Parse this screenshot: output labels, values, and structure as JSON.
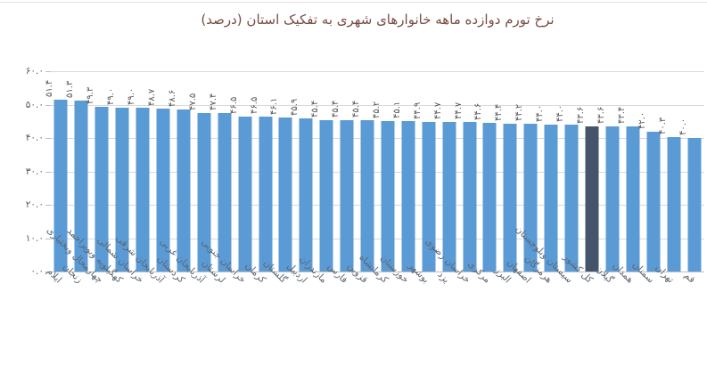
{
  "title": "نرخ تورم دوازده ماهه خانوارهای شهری به تفکیک استان (درصد)",
  "chart_data": {
    "type": "bar",
    "title": "نرخ تورم دوازده ماهه خانوارهای شهری به تفکیک استان (درصد)",
    "ylabel": "",
    "xlabel": "",
    "ylim": [
      0,
      60
    ],
    "grid": true,
    "legend": "none",
    "bar_color": "#5B9BD5",
    "highlight_color": "#44546A",
    "highlighted_category": "کل کشور",
    "highlight_index": 26,
    "y_tick_values": [
      60,
      50,
      40,
      30,
      20,
      10,
      0
    ],
    "y_tick_labels": [
      "۶۰.۰",
      "۵۰.۰",
      "۴۰.۰",
      "۳۰.۰",
      "۲۰.۰",
      "۱۰.۰",
      "۰.۰"
    ],
    "categories": [
      "ایلام",
      "زنجان",
      "چهارمحال وبختیاری",
      "کهگیلویه وبویراحمد",
      "خراسان شمالی",
      "آذربایجان شرقی",
      "کردستان",
      "آذربایجان غربی",
      "لرستان",
      "خراسان جنوبی",
      "کرمان",
      "گلستان",
      "اردبیل",
      "مازندران",
      "فارس",
      "قزوین",
      "کرمانشاه",
      "خوزستان",
      "بوشهر",
      "یزد",
      "خراسان رضوی",
      "مرکزی",
      "البرز",
      "اصفهان",
      "هرمزگان",
      "سیستان وبلوچستان",
      "کل کشور",
      "گیلان",
      "همدان",
      "سمنان",
      "تهران",
      "قم"
    ],
    "values": [
      51.4,
      51.3,
      49.3,
      49.0,
      49.0,
      48.7,
      48.6,
      47.5,
      47.4,
      46.5,
      46.5,
      46.1,
      45.9,
      45.4,
      45.4,
      45.4,
      45.2,
      45.1,
      44.9,
      44.7,
      44.7,
      44.6,
      44.4,
      44.2,
      44.0,
      44.0,
      43.6,
      43.6,
      43.4,
      42.0,
      40.3,
      40.0
    ],
    "value_labels": [
      "۵۱.۴",
      "۵۱.۳",
      "۴۹.۳",
      "۴۹.۰",
      "۴۹.۰",
      "۴۸.۷",
      "۴۸.۶",
      "۴۷.۵",
      "۴۷.۴",
      "۴۶.۵",
      "۴۶.۵",
      "۴۶.۱",
      "۴۵.۹",
      "۴۵.۴",
      "۴۵.۴",
      "۴۵.۴",
      "۴۵.۲",
      "۴۵.۱",
      "۴۴.۹",
      "۴۴.۷",
      "۴۴.۷",
      "۴۴.۶",
      "۴۴.۴",
      "۴۴.۲",
      "۴۴.۰",
      "۴۴.۰",
      "۴۳.۶",
      "۴۳.۶",
      "۴۳.۴",
      "۴۲.۰",
      "۴۰.۳",
      "۴۰.۰"
    ],
    "colors": {
      "grid": "#d9d9d9",
      "axis_line": "#bfbfbf",
      "value_label": "#595959",
      "y_label": "#595959",
      "x_label": "#5a6572",
      "title": "#774B41"
    }
  }
}
